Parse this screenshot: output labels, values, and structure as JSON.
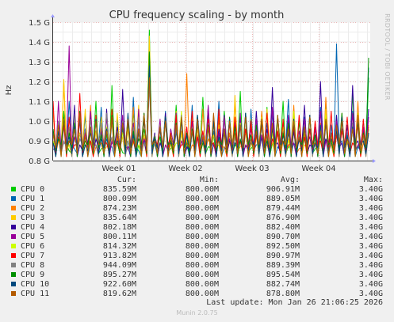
{
  "chart_data": {
    "type": "line",
    "title": "CPU frequency scaling - by month",
    "ylabel": "Hz",
    "side_label": "RRDTOOL / TOBI OETIKER",
    "ylim": [
      0.8,
      1.5
    ],
    "yticks": [
      0.8,
      0.9,
      1.0,
      1.1,
      1.2,
      1.3,
      1.4,
      1.5
    ],
    "ytick_labels": [
      "0.8 G",
      "0.9 G",
      "1.0 G",
      "1.1 G",
      "1.2 G",
      "1.3 G",
      "1.4 G",
      "1.5 G"
    ],
    "xtick_labels": [
      "Week 01",
      "Week 02",
      "Week 03",
      "Week 04"
    ],
    "grid": true,
    "unit": "GHz",
    "series": [
      {
        "name": "CPU 0",
        "color": "#00cc00",
        "values": [
          0.9,
          0.95,
          1.05,
          0.85,
          0.92,
          1.02,
          0.88,
          0.97,
          1.1,
          0.86,
          0.93,
          1.18,
          0.9,
          0.84,
          0.99,
          1.05,
          0.88,
          0.96,
          1.46,
          0.9,
          0.92,
          1.0,
          0.86,
          1.08,
          0.94,
          0.89,
          1.02,
          0.97,
          1.12,
          0.87,
          0.93,
          0.99,
          1.05,
          0.9,
          0.88,
          1.15,
          0.95,
          0.86,
          1.01,
          0.92,
          1.07,
          0.89,
          0.94,
          1.1,
          0.87,
          0.96,
          1.0,
          0.91,
          1.03,
          0.86,
          0.93,
          1.09,
          0.88,
          0.97,
          1.02,
          0.9,
          1.14,
          0.87,
          0.95,
          1.22
        ]
      },
      {
        "name": "CPU 1",
        "color": "#0066b3",
        "values": [
          0.88,
          0.92,
          0.98,
          1.1,
          0.86,
          0.94,
          1.03,
          0.89,
          0.95,
          1.07,
          0.91,
          0.87,
          1.01,
          0.96,
          0.9,
          1.12,
          0.85,
          0.93,
          1.34,
          0.88,
          0.97,
          1.05,
          0.9,
          0.94,
          1.0,
          0.86,
          1.08,
          0.92,
          0.89,
          1.03,
          0.95,
          1.1,
          0.87,
          0.93,
          1.01,
          0.9,
          0.96,
          1.06,
          0.88,
          0.92,
          0.99,
          1.04,
          0.87,
          0.95,
          1.11,
          0.89,
          0.93,
          1.02,
          0.96,
          0.88,
          1.07,
          0.91,
          0.98,
          1.39,
          0.9,
          0.94,
          1.05,
          0.87,
          1.0,
          1.27
        ]
      },
      {
        "name": "CPU 2",
        "color": "#ff8000",
        "values": [
          1.05,
          0.9,
          1.2,
          0.95,
          0.88,
          1.02,
          0.93,
          1.08,
          0.87,
          0.99,
          1.04,
          0.91,
          0.96,
          1.01,
          0.86,
          1.07,
          0.94,
          0.9,
          1.25,
          0.92,
          0.97,
          1.03,
          0.89,
          1.0,
          0.95,
          1.24,
          0.88,
          0.93,
          1.06,
          0.91,
          0.98,
          1.02,
          0.87,
          0.94,
          1.09,
          0.9,
          0.96,
          1.0,
          0.93,
          1.05,
          0.88,
          0.95,
          1.01,
          0.9,
          0.97,
          1.08,
          0.86,
          0.94,
          1.03,
          0.91,
          0.99,
          1.12,
          0.88,
          0.95,
          1.04,
          0.9,
          0.97,
          1.1,
          0.89,
          0.93
        ]
      },
      {
        "name": "CPU 3",
        "color": "#ffcc00",
        "values": [
          0.92,
          0.98,
          1.21,
          0.88,
          1.0,
          0.94,
          1.06,
          0.9,
          0.95,
          1.02,
          0.87,
          0.99,
          1.04,
          0.92,
          0.96,
          0.89,
          1.08,
          0.93,
          1.43,
          0.91,
          0.97,
          1.01,
          0.88,
          1.05,
          0.94,
          0.9,
          1.03,
          0.96,
          0.89,
          1.07,
          0.93,
          0.98,
          1.02,
          0.9,
          1.13,
          0.87,
          0.95,
          1.01,
          0.92,
          0.98,
          1.06,
          0.89,
          0.94,
          1.0,
          0.91,
          1.04,
          0.95,
          0.88,
          1.02,
          0.97,
          0.9,
          1.06,
          0.93,
          0.99,
          1.03,
          0.89,
          0.96,
          1.01,
          0.92,
          0.98
        ]
      },
      {
        "name": "CPU 4",
        "color": "#330099",
        "values": [
          0.86,
          0.94,
          1.0,
          0.9,
          1.08,
          0.88,
          0.96,
          1.02,
          0.91,
          0.95,
          1.06,
          0.89,
          0.97,
          1.16,
          0.87,
          0.93,
          1.01,
          0.9,
          1.3,
          0.94,
          0.89,
          1.04,
          0.92,
          0.98,
          1.02,
          0.87,
          0.95,
          1.0,
          0.91,
          1.07,
          0.88,
          0.96,
          1.03,
          0.9,
          0.94,
          1.01,
          0.87,
          0.99,
          1.05,
          0.92,
          0.96,
          1.17,
          0.89,
          0.93,
          1.02,
          0.95,
          0.9,
          1.08,
          0.88,
          0.97,
          1.2,
          0.91,
          0.94,
          1.03,
          0.89,
          0.98,
          1.18,
          0.9,
          0.95,
          1.06
        ]
      },
      {
        "name": "CPU 5",
        "color": "#990099",
        "values": [
          0.95,
          1.1,
          0.89,
          1.38,
          0.92,
          1.0,
          0.94,
          1.05,
          0.88,
          0.97,
          1.02,
          0.9,
          0.95,
          1.03,
          0.87,
          0.99,
          1.06,
          0.91,
          1.2,
          0.93,
          1.01,
          0.88,
          0.96,
          1.04,
          0.9,
          0.97,
          1.0,
          0.92,
          0.95,
          1.08,
          0.89,
          0.94,
          1.02,
          0.91,
          0.98,
          1.04,
          0.88,
          0.96,
          1.01,
          0.93,
          0.9,
          1.07,
          0.94,
          0.99,
          1.03,
          0.89,
          0.95,
          1.01,
          0.92,
          0.97,
          1.05,
          0.9,
          0.94,
          1.0,
          0.96,
          0.91,
          1.04,
          0.88,
          0.97,
          1.02
        ]
      },
      {
        "name": "CPU 6",
        "color": "#ccff00",
        "values": [
          0.9,
          0.96,
          1.02,
          0.88,
          0.99,
          1.04,
          0.92,
          0.95,
          1.01,
          0.89,
          0.97,
          1.06,
          0.91,
          0.94,
          1.0,
          0.93,
          0.88,
          1.03,
          1.25,
          0.9,
          0.98,
          1.02,
          0.94,
          0.89,
          1.05,
          0.92,
          0.96,
          1.0,
          0.9,
          0.97,
          1.03,
          0.88,
          0.95,
          1.01,
          0.93,
          0.99,
          1.04,
          0.89,
          0.96,
          1.02,
          0.91,
          0.94,
          1.0,
          0.97,
          0.9,
          1.05,
          0.93,
          0.96,
          1.01,
          0.89,
          0.98,
          1.03,
          0.92,
          0.95,
          1.0,
          0.9,
          0.97,
          1.04,
          0.93,
          0.96
        ]
      },
      {
        "name": "CPU 7",
        "color": "#ff0000",
        "values": [
          1.1,
          0.92,
          0.98,
          1.02,
          0.88,
          1.14,
          0.95,
          0.9,
          1.03,
          0.97,
          0.89,
          1.06,
          0.93,
          0.99,
          1.01,
          0.9,
          0.96,
          1.04,
          1.21,
          0.91,
          0.98,
          1.0,
          0.94,
          1.03,
          0.88,
          0.97,
          1.05,
          0.92,
          0.95,
          1.01,
          0.89,
          1.06,
          0.94,
          0.99,
          1.02,
          0.9,
          0.96,
          1.0,
          0.93,
          0.98,
          1.04,
          0.91,
          0.95,
          1.01,
          0.88,
          0.97,
          1.03,
          0.92,
          0.96,
          1.0,
          0.9,
          0.99,
          1.05,
          0.93,
          0.95,
          1.02,
          0.89,
          0.98,
          1.01,
          0.94
        ]
      },
      {
        "name": "CPU 8",
        "color": "#808080",
        "values": [
          0.94,
          1.0,
          0.9,
          0.97,
          1.03,
          0.91,
          0.96,
          1.01,
          0.88,
          0.99,
          1.04,
          0.92,
          0.95,
          1.0,
          0.9,
          0.97,
          1.02,
          0.89,
          1.18,
          0.93,
          0.98,
          1.01,
          0.91,
          0.96,
          1.03,
          0.88,
          0.97,
          1.0,
          0.93,
          0.99,
          1.02,
          0.9,
          0.95,
          1.01,
          0.92,
          0.98,
          1.04,
          0.89,
          0.96,
          1.0,
          0.94,
          0.97,
          1.02,
          0.9,
          0.95,
          1.01,
          0.93,
          0.98,
          1.03,
          0.91,
          0.96,
          1.0,
          0.89,
          0.97,
          1.02,
          0.94,
          0.99,
          1.01,
          0.92,
          0.96
        ]
      },
      {
        "name": "CPU 9",
        "color": "#008f00",
        "values": [
          0.96,
          0.91,
          1.02,
          0.94,
          0.99,
          1.05,
          0.9,
          0.97,
          1.01,
          0.93,
          0.96,
          1.03,
          0.89,
          0.98,
          1.0,
          0.95,
          0.91,
          1.04,
          1.35,
          0.92,
          0.97,
          1.02,
          0.9,
          0.99,
          1.01,
          0.94,
          0.96,
          1.03,
          0.89,
          0.98,
          1.0,
          0.92,
          0.95,
          1.02,
          0.97,
          0.91,
          1.04,
          0.93,
          0.98,
          1.01,
          0.9,
          0.96,
          1.03,
          0.94,
          0.99,
          1.0,
          0.91,
          0.97,
          1.02,
          0.93,
          0.95,
          1.01,
          0.9,
          0.98,
          1.04,
          0.92,
          0.96,
          1.0,
          0.94,
          1.32
        ]
      },
      {
        "name": "CPU 10",
        "color": "#00487d",
        "values": [
          0.89,
          0.95,
          1.0,
          0.92,
          0.97,
          1.03,
          0.88,
          0.94,
          1.01,
          0.91,
          0.96,
          1.02,
          0.9,
          0.99,
          1.04,
          0.93,
          0.95,
          1.0,
          1.28,
          0.91,
          0.96,
          1.02,
          0.89,
          0.98,
          1.01,
          0.93,
          0.95,
          1.03,
          0.9,
          0.97,
          1.0,
          0.92,
          0.96,
          1.01,
          0.89,
          0.98,
          1.04,
          0.91,
          0.95,
          1.0,
          0.93,
          0.97,
          1.02,
          0.9,
          0.94,
          1.01,
          0.92,
          0.96,
          1.03,
          0.89,
          0.98,
          1.0,
          0.91,
          0.95,
          1.02,
          0.93,
          0.97,
          1.01,
          0.9,
          0.94
        ]
      },
      {
        "name": "CPU 11",
        "color": "#b35a00",
        "values": [
          0.93,
          0.98,
          1.01,
          0.9,
          0.96,
          1.04,
          0.92,
          0.97,
          1.0,
          0.89,
          0.95,
          1.02,
          0.94,
          0.99,
          1.01,
          0.91,
          0.96,
          1.03,
          1.22,
          0.9,
          0.97,
          1.0,
          0.93,
          0.98,
          1.02,
          0.89,
          0.95,
          1.01,
          0.92,
          0.97,
          1.04,
          0.9,
          0.96,
          1.0,
          0.94,
          0.98,
          1.02,
          0.91,
          0.95,
          1.01,
          0.93,
          0.99,
          1.03,
          0.9,
          0.96,
          1.0,
          0.92,
          0.97,
          1.02,
          0.89,
          0.95,
          1.01,
          0.94,
          0.98,
          1.0,
          0.91,
          0.96,
          1.03,
          0.93,
          0.97
        ]
      }
    ]
  },
  "legend": {
    "headers": {
      "cur": "Cur:",
      "min": "Min:",
      "avg": "Avg:",
      "max": "Max:"
    },
    "rows": [
      {
        "name": "CPU 0",
        "color": "#00cc00",
        "cur": "835.59M",
        "min": "800.00M",
        "avg": "906.91M",
        "max": "3.40G"
      },
      {
        "name": "CPU 1",
        "color": "#0066b3",
        "cur": "800.09M",
        "min": "800.00M",
        "avg": "889.05M",
        "max": "3.40G"
      },
      {
        "name": "CPU 2",
        "color": "#ff8000",
        "cur": "874.23M",
        "min": "800.00M",
        "avg": "879.44M",
        "max": "3.40G"
      },
      {
        "name": "CPU 3",
        "color": "#ffcc00",
        "cur": "835.64M",
        "min": "800.00M",
        "avg": "876.90M",
        "max": "3.40G"
      },
      {
        "name": "CPU 4",
        "color": "#330099",
        "cur": "802.18M",
        "min": "800.00M",
        "avg": "882.40M",
        "max": "3.40G"
      },
      {
        "name": "CPU 5",
        "color": "#990099",
        "cur": "800.11M",
        "min": "800.00M",
        "avg": "890.70M",
        "max": "3.40G"
      },
      {
        "name": "CPU 6",
        "color": "#ccff00",
        "cur": "814.32M",
        "min": "800.00M",
        "avg": "892.50M",
        "max": "3.40G"
      },
      {
        "name": "CPU 7",
        "color": "#ff0000",
        "cur": "913.82M",
        "min": "800.00M",
        "avg": "890.97M",
        "max": "3.40G"
      },
      {
        "name": "CPU 8",
        "color": "#808080",
        "cur": "944.09M",
        "min": "800.00M",
        "avg": "889.39M",
        "max": "3.40G"
      },
      {
        "name": "CPU 9",
        "color": "#008f00",
        "cur": "895.27M",
        "min": "800.00M",
        "avg": "895.54M",
        "max": "3.40G"
      },
      {
        "name": "CPU 10",
        "color": "#00487d",
        "cur": "922.60M",
        "min": "800.00M",
        "avg": "882.74M",
        "max": "3.40G"
      },
      {
        "name": "CPU 11",
        "color": "#b35a00",
        "cur": "819.62M",
        "min": "800.00M",
        "avg": "878.80M",
        "max": "3.40G"
      }
    ]
  },
  "last_update": "Last update: Mon Jan 26 21:06:25 2026",
  "footer": "Munin 2.0.75"
}
